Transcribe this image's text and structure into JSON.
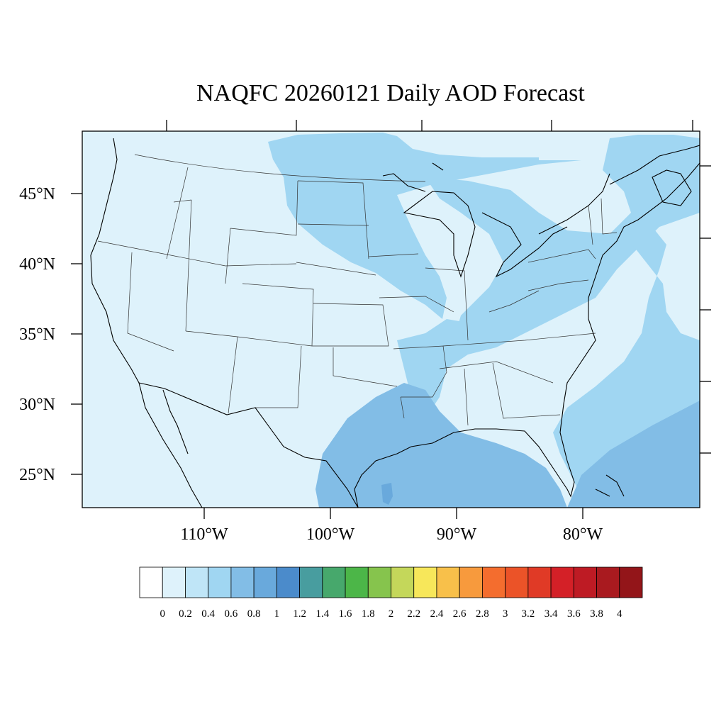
{
  "title": "NAQFC 20260121 Daily AOD Forecast",
  "map": {
    "background_color": "#def2fb",
    "latitude_labels": [
      "45°N",
      "40°N",
      "35°N",
      "30°N",
      "25°N"
    ],
    "longitude_labels": [
      "110°W",
      "100°W",
      "90°W",
      "80°W"
    ],
    "aod_zones": [
      {
        "name": "north-plains-band",
        "level": 0.4
      },
      {
        "name": "mississippi-ohio-band",
        "level": 0.4
      },
      {
        "name": "great-lakes-band",
        "level": 0.4
      },
      {
        "name": "gulf-coast-plume",
        "level": 0.6
      },
      {
        "name": "atlantic-offshore-band",
        "level": 0.4
      },
      {
        "name": "caribbean-band",
        "level": 0.6
      },
      {
        "name": "east-texas-spot",
        "level": 0.8
      }
    ]
  },
  "colorbar": {
    "tick_labels": [
      "0",
      "0.2",
      "0.4",
      "0.6",
      "0.8",
      "1",
      "1.2",
      "1.4",
      "1.6",
      "1.8",
      "2",
      "2.2",
      "2.4",
      "2.6",
      "2.8",
      "3",
      "3.2",
      "3.4",
      "3.6",
      "3.8",
      "4"
    ],
    "colors": [
      "#ffffff",
      "#def2fb",
      "#bfe5f7",
      "#a0d6f2",
      "#82bde6",
      "#69a9dc",
      "#4b8bcb",
      "#489d9f",
      "#47a86c",
      "#4cb648",
      "#86c44d",
      "#c4d75a",
      "#f7e75a",
      "#f8c04a",
      "#f79a3d",
      "#f46d2e",
      "#eb5328",
      "#e03a26",
      "#d42027",
      "#be1b24",
      "#a91a1f",
      "#931519"
    ]
  }
}
